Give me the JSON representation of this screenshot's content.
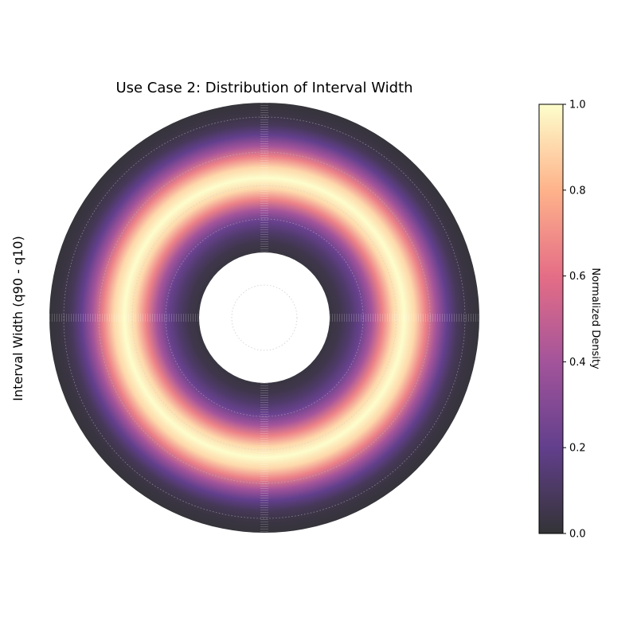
{
  "chart_data": {
    "type": "heatmap",
    "subtype": "polar-annulus-density",
    "title": "Use Case 2: Distribution of Interval Width",
    "ylabel": "Interval Width (q90 - q10)",
    "colorbar": {
      "label": "Normalized Density",
      "ticks": [
        "0.0",
        "0.2",
        "0.4",
        "0.6",
        "0.8",
        "1.0"
      ],
      "range": [
        0.0,
        1.0
      ],
      "colormap": "magma",
      "colors": [
        "#000004",
        "#3b0f70",
        "#8c2981",
        "#de4968",
        "#fe9f6d",
        "#fcfdbf"
      ],
      "alpha": 0.8
    },
    "radial_density_profile": {
      "description_units": "fraction of outer radius vs normalized density",
      "r": [
        0.3,
        0.35,
        0.4,
        0.45,
        0.5,
        0.55,
        0.6,
        0.65,
        0.7,
        0.75,
        0.8,
        0.85,
        0.9,
        0.95,
        1.0
      ],
      "density": [
        0.02,
        0.05,
        0.12,
        0.22,
        0.4,
        0.66,
        0.9,
        1.0,
        0.9,
        0.66,
        0.4,
        0.2,
        0.08,
        0.03,
        0.01
      ]
    },
    "grid": true,
    "inner_hole": true
  }
}
